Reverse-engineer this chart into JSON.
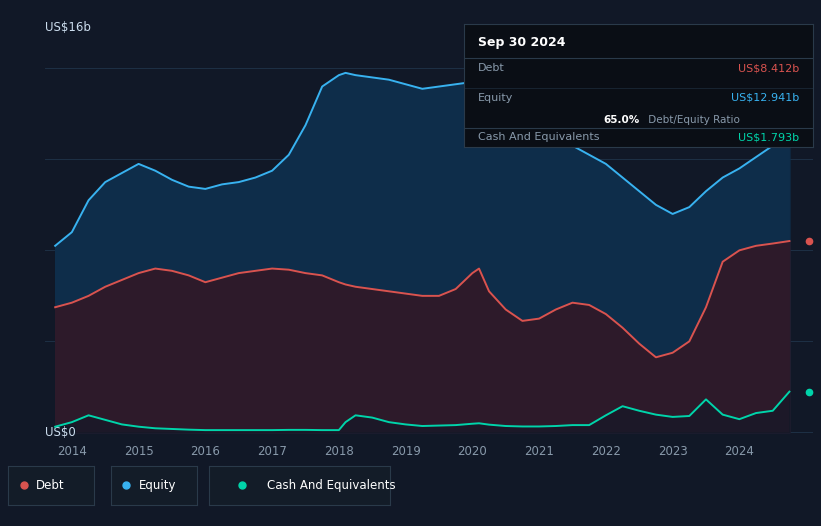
{
  "background_color": "#111827",
  "plot_bg_color": "#111827",
  "equity_color": "#38b2f0",
  "equity_fill": "#0e2d4a",
  "debt_color": "#d9534f",
  "debt_fill": "#2d1a2a",
  "cash_color": "#00d4aa",
  "grid_color": "#1e3045",
  "tick_color": "#8899aa",
  "xlim": [
    2013.6,
    2025.1
  ],
  "ylim": [
    -0.3,
    17.5
  ],
  "yaxis_label_top": "US$16b",
  "yaxis_label_bottom": "US$0",
  "years": [
    2013.75,
    2014.0,
    2014.25,
    2014.5,
    2014.75,
    2015.0,
    2015.25,
    2015.5,
    2015.75,
    2016.0,
    2016.25,
    2016.5,
    2016.75,
    2017.0,
    2017.25,
    2017.5,
    2017.75,
    2018.0,
    2018.1,
    2018.25,
    2018.5,
    2018.75,
    2019.0,
    2019.25,
    2019.5,
    2019.75,
    2020.0,
    2020.1,
    2020.25,
    2020.5,
    2020.75,
    2021.0,
    2021.25,
    2021.5,
    2021.75,
    2022.0,
    2022.25,
    2022.5,
    2022.75,
    2023.0,
    2023.25,
    2023.5,
    2023.75,
    2024.0,
    2024.25,
    2024.5,
    2024.75
  ],
  "equity": [
    8.2,
    8.8,
    10.2,
    11.0,
    11.4,
    11.8,
    11.5,
    11.1,
    10.8,
    10.7,
    10.9,
    11.0,
    11.2,
    11.5,
    12.2,
    13.5,
    15.2,
    15.7,
    15.8,
    15.7,
    15.6,
    15.5,
    15.3,
    15.1,
    15.2,
    15.3,
    15.4,
    15.5,
    14.8,
    14.2,
    13.5,
    13.1,
    12.9,
    12.6,
    12.2,
    11.8,
    11.2,
    10.6,
    10.0,
    9.6,
    9.9,
    10.6,
    11.2,
    11.6,
    12.1,
    12.6,
    12.94
  ],
  "debt": [
    5.5,
    5.7,
    6.0,
    6.4,
    6.7,
    7.0,
    7.2,
    7.1,
    6.9,
    6.6,
    6.8,
    7.0,
    7.1,
    7.2,
    7.15,
    7.0,
    6.9,
    6.6,
    6.5,
    6.4,
    6.3,
    6.2,
    6.1,
    6.0,
    6.0,
    6.3,
    7.0,
    7.2,
    6.2,
    5.4,
    4.9,
    5.0,
    5.4,
    5.7,
    5.6,
    5.2,
    4.6,
    3.9,
    3.3,
    3.5,
    4.0,
    5.5,
    7.5,
    8.0,
    8.2,
    8.3,
    8.41
  ],
  "cash": [
    0.25,
    0.45,
    0.75,
    0.55,
    0.35,
    0.25,
    0.18,
    0.15,
    0.12,
    0.1,
    0.1,
    0.1,
    0.1,
    0.1,
    0.11,
    0.11,
    0.1,
    0.1,
    0.45,
    0.75,
    0.65,
    0.45,
    0.35,
    0.28,
    0.3,
    0.32,
    0.38,
    0.4,
    0.34,
    0.28,
    0.26,
    0.26,
    0.28,
    0.32,
    0.32,
    0.75,
    1.15,
    0.95,
    0.78,
    0.68,
    0.72,
    1.45,
    0.78,
    0.58,
    0.85,
    0.95,
    1.79
  ],
  "xtick_years": [
    2014,
    2015,
    2016,
    2017,
    2018,
    2019,
    2020,
    2021,
    2022,
    2023,
    2024
  ],
  "legend_items": [
    {
      "label": "Debt",
      "color": "#d9534f"
    },
    {
      "label": "Equity",
      "color": "#38b2f0"
    },
    {
      "label": "Cash And Equivalents",
      "color": "#00d4aa"
    }
  ],
  "tooltip": {
    "date": "Sep 30 2024",
    "debt_label": "Debt",
    "debt_value": "US$8.412b",
    "debt_color": "#d9534f",
    "equity_label": "Equity",
    "equity_value": "US$12.941b",
    "equity_color": "#38b2f0",
    "ratio_pct": "65.0%",
    "ratio_rest": " Debt/Equity Ratio",
    "cash_label": "Cash And Equivalents",
    "cash_value": "US$1.793b",
    "cash_color": "#00d4aa",
    "bg": "#0a0e15",
    "border": "#2a3a4a",
    "text_dim": "#8899aa",
    "text_bright": "#ffffff"
  }
}
